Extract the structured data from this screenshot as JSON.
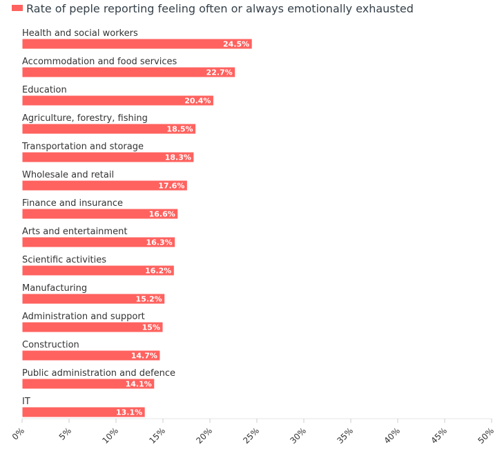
{
  "chart_data": {
    "type": "bar",
    "orientation": "horizontal",
    "title": "",
    "xlabel": "",
    "ylabel": "",
    "legend": [
      {
        "label": "Rate of peple reporting feeling often or always emotionally exhausted",
        "color": "#ff625f"
      }
    ],
    "legend_position": "top-left",
    "categories": [
      "Health and social workers",
      "Accommodation and food services",
      "Education",
      "Agriculture, forestry, fishing",
      "Transportation and storage",
      "Wholesale and retail",
      "Finance and insurance",
      "Arts and entertainment",
      "Scientific activities",
      "Manufacturing",
      "Administration and support",
      "Construction",
      "Public administration and defence",
      "IT"
    ],
    "series": [
      {
        "name": "Rate of peple reporting feeling often or always emotionally exhausted",
        "values": [
          24.5,
          22.7,
          20.4,
          18.5,
          18.3,
          17.6,
          16.6,
          16.3,
          16.2,
          15.2,
          15,
          14.7,
          14.1,
          13.1
        ],
        "labels": [
          "24.5%",
          "22.7%",
          "20.4%",
          "18.5%",
          "18.3%",
          "17.6%",
          "16.6%",
          "16.3%",
          "16.2%",
          "15.2%",
          "15%",
          "14.7%",
          "14.1%",
          "13.1%"
        ],
        "color": "#ff625f"
      }
    ],
    "xlim": [
      0,
      50
    ],
    "x_ticks": [
      0,
      5,
      10,
      15,
      20,
      25,
      30,
      35,
      40,
      45,
      50
    ],
    "x_tick_labels": [
      "0%",
      "5%",
      "10%",
      "15%",
      "20%",
      "25%",
      "30%",
      "35%",
      "40%",
      "45%",
      "50%"
    ],
    "grid": false
  }
}
